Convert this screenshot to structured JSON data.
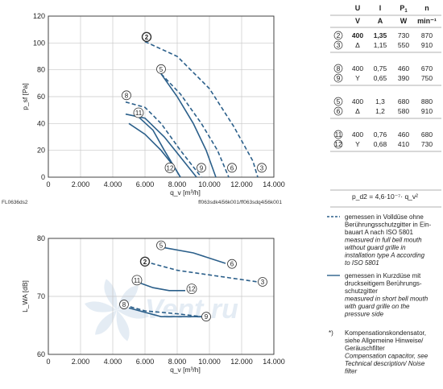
{
  "charts": [
    {
      "type": "line",
      "ylabel": "p_sf [Pa]",
      "xlabel": "q_v [m³/h]",
      "xlim": [
        0,
        14000
      ],
      "ylim": [
        0,
        120
      ],
      "xticks": [
        "0",
        "2.000",
        "4.000",
        "6.000",
        "8.000",
        "10.000",
        "12.000",
        "14.000"
      ],
      "yticks": [
        "0",
        "20",
        "40",
        "60",
        "80",
        "100",
        "120"
      ],
      "grid": true,
      "footer_left": "FL0636ds2",
      "footer_right": "ff063sdk4i56k001/ff063sdq4i56k001",
      "series": [
        {
          "name": "2",
          "dash": true,
          "bold_label": true,
          "points": [
            [
              6000,
              101
            ],
            [
              8000,
              90
            ],
            [
              10000,
              66
            ],
            [
              11500,
              38
            ],
            [
              12700,
              12
            ],
            [
              13000,
              0
            ]
          ],
          "label_pos": [
            6100,
            104.5
          ]
        },
        {
          "name": "3",
          "dash": true,
          "points": [
            [
              13000,
              0
            ]
          ],
          "label_pos": [
            13250,
            7
          ]
        },
        {
          "name": "5",
          "dash": false,
          "points": [
            [
              7000,
              77
            ],
            [
              8000,
              60
            ],
            [
              9000,
              40
            ],
            [
              9800,
              20
            ],
            [
              10400,
              0
            ]
          ],
          "label_pos": [
            7000,
            80.5
          ]
        },
        {
          "name": "6",
          "dash": true,
          "points": [
            [
              7000,
              77
            ],
            [
              8200,
              62
            ],
            [
              9500,
              40
            ],
            [
              10500,
              20
            ],
            [
              11200,
              0
            ]
          ],
          "label_pos": [
            11400,
            7
          ]
        },
        {
          "name": "8",
          "dash": true,
          "points": [
            [
              4800,
              56
            ],
            [
              6000,
              52
            ],
            [
              7000,
              40
            ],
            [
              8200,
              20
            ],
            [
              9500,
              0
            ]
          ],
          "label_pos": [
            4850,
            61
          ]
        },
        {
          "name": "9",
          "dash": false,
          "points": [
            [
              4800,
              47
            ],
            [
              6000,
              44
            ],
            [
              7200,
              30
            ],
            [
              8400,
              12
            ],
            [
              9200,
              0
            ]
          ],
          "label_pos": [
            9500,
            7
          ]
        },
        {
          "name": "11",
          "dash": false,
          "points": [
            [
              5500,
              46
            ],
            [
              6500,
              35
            ],
            [
              7200,
              20
            ],
            [
              7800,
              8
            ],
            [
              8200,
              0
            ]
          ],
          "label_pos": [
            5600,
            48
          ]
        },
        {
          "name": "12",
          "dash": false,
          "points": [
            [
              5000,
              40
            ],
            [
              6000,
              32
            ],
            [
              7000,
              20
            ],
            [
              7800,
              8
            ],
            [
              8200,
              0
            ]
          ],
          "label_pos": [
            7550,
            7
          ]
        }
      ]
    },
    {
      "type": "line",
      "ylabel": "L_WA [dB]",
      "xlabel": "q_v [m³/h]",
      "xlim": [
        0,
        14000
      ],
      "ylim": [
        60,
        80
      ],
      "xticks": [
        "0",
        "2.000",
        "4.000",
        "6.000",
        "8.000",
        "10.000",
        "12.000",
        "14.000"
      ],
      "yticks": [
        "60",
        "70",
        "80"
      ],
      "grid": true,
      "series": [
        {
          "name": "5",
          "dash": false,
          "points": [
            [
              7000,
              78.5
            ],
            [
              9000,
              77.5
            ],
            [
              11000,
              75.7
            ]
          ],
          "label_pos": [
            7000,
            78.8
          ]
        },
        {
          "name": "6",
          "dash": false,
          "points": [
            [
              11000,
              75.7
            ]
          ],
          "label_pos": [
            11400,
            75.6
          ]
        },
        {
          "name": "2",
          "dash": true,
          "bold_label": true,
          "points": [
            [
              6000,
              76
            ],
            [
              8000,
              74.5
            ],
            [
              10500,
              73.5
            ],
            [
              13000,
              72.5
            ]
          ],
          "label_pos": [
            6000,
            76
          ]
        },
        {
          "name": "3",
          "dash": true,
          "points": [
            [
              13000,
              72.5
            ]
          ],
          "label_pos": [
            13300,
            72.5
          ]
        },
        {
          "name": "11",
          "dash": false,
          "points": [
            [
              5500,
              72.5
            ],
            [
              6500,
              71.5
            ],
            [
              7500,
              71
            ],
            [
              8500,
              71
            ]
          ],
          "label_pos": [
            5500,
            72.8
          ]
        },
        {
          "name": "12",
          "dash": false,
          "points": [
            [
              8500,
              71
            ]
          ],
          "label_pos": [
            8900,
            71.3
          ]
        },
        {
          "name": "8",
          "dash": true,
          "points": [
            [
              4700,
              68.5
            ],
            [
              6000,
              67.5
            ],
            [
              8000,
              67
            ],
            [
              9500,
              66.5
            ]
          ],
          "label_pos": [
            4700,
            68.6
          ]
        },
        {
          "name": "9",
          "dash": false,
          "points": [
            [
              5000,
              68
            ],
            [
              7000,
              66.5
            ],
            [
              9500,
              66.5
            ]
          ],
          "label_pos": [
            9800,
            66.5
          ]
        }
      ]
    }
  ],
  "table": {
    "headers": [
      "U",
      "I",
      "P1",
      "n"
    ],
    "units": [
      "V",
      "A",
      "W",
      "min⁻¹"
    ],
    "groups": [
      {
        "rows": [
          {
            "curve": "2",
            "conn": "",
            "U": "400",
            "I": "1,35",
            "P": "730",
            "n": "870",
            "bold": true
          },
          {
            "curve": "3",
            "conn": "Δ",
            "U": "",
            "I": "1,15",
            "P": "550",
            "n": "910",
            "bold": false
          }
        ]
      },
      {
        "rows": [
          {
            "curve": "8",
            "conn": "",
            "U": "400",
            "I": "0,75",
            "P": "460",
            "n": "670",
            "bold": false
          },
          {
            "curve": "9",
            "conn": "Y",
            "U": "",
            "I": "0,65",
            "P": "390",
            "n": "750",
            "bold": false
          }
        ]
      },
      {
        "rows": [
          {
            "curve": "5",
            "conn": "",
            "U": "400",
            "I": "1,3",
            "P": "680",
            "n": "880",
            "bold": false
          },
          {
            "curve": "6",
            "conn": "Δ",
            "U": "",
            "I": "1,2",
            "P": "580",
            "n": "910",
            "bold": false
          }
        ]
      },
      {
        "rows": [
          {
            "curve": "11",
            "conn": "",
            "U": "400",
            "I": "0,76",
            "P": "460",
            "n": "680",
            "bold": false
          },
          {
            "curve": "12",
            "conn": "Y",
            "U": "",
            "I": "0,68",
            "P": "410",
            "n": "730",
            "bold": false
          }
        ]
      }
    ],
    "formula": "p_d2 = 4,6·10⁻⁷· q_v²"
  },
  "legend": [
    {
      "style": "dashed",
      "de": "gemessen in Volldüse ohne Berührungsschutzgitter in Ein- bauart A nach ISO 5801",
      "en": "measured in full bell mouth without guard grille in installation type A according to ISO 5801"
    },
    {
      "style": "solid",
      "de": "gemessen in Kurzdüse mit druckseitigem Berührungs- schutzgitter",
      "en": "measured in short bell mouth with guard grille on the pressure side"
    },
    {
      "style": "note",
      "mark": "*)",
      "de": "Kompensationskondensator, siehe Allgemeine Hinweise/ Geräuschfilter",
      "en": "Compensation capacitor, see Technical description/ Noise filter"
    }
  ],
  "colors": {
    "curve": "#2b5f8a",
    "grid": "#c8c8c8",
    "axis": "#333333",
    "rule": "#999999"
  },
  "watermark": "Vent.ru"
}
